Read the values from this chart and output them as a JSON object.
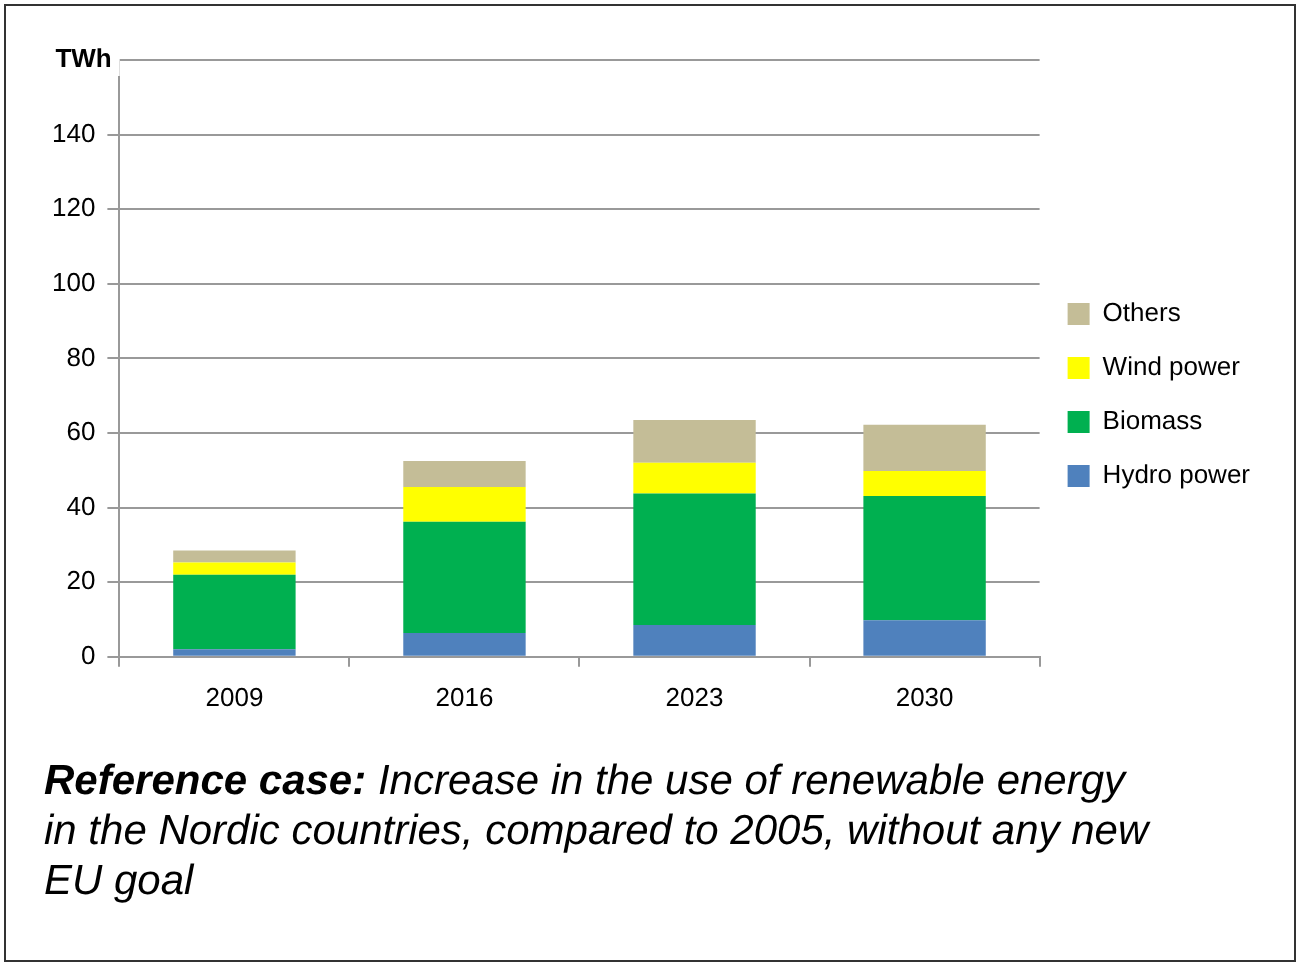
{
  "chart_data": {
    "type": "bar",
    "stacked": true,
    "ylabel": "TWh",
    "categories": [
      "2009",
      "2016",
      "2023",
      "2030"
    ],
    "series": [
      {
        "name": "Hydro power",
        "color": "#4f81bd",
        "values": [
          2,
          6.4,
          8.5,
          9.8
        ]
      },
      {
        "name": "Biomass",
        "color": "#00b050",
        "values": [
          20,
          29.8,
          35.3,
          33.3
        ]
      },
      {
        "name": "Wind power",
        "color": "#ffff00",
        "values": [
          3.3,
          9.3,
          8.2,
          6.7
        ]
      },
      {
        "name": "Others",
        "color": "#c4bd97",
        "values": [
          3.2,
          7,
          11.5,
          12.4
        ]
      }
    ],
    "ylim": [
      0,
      160
    ],
    "yticks": [
      0,
      20,
      40,
      60,
      80,
      100,
      120,
      140,
      {
        "value": 160,
        "label": null
      }
    ],
    "grid": "y",
    "legend": "right",
    "annotations": [
      "Reference case:",
      "Increase in the use of renewable energy in the Nordic countries, compared to 2005, without any new EU goal"
    ]
  }
}
